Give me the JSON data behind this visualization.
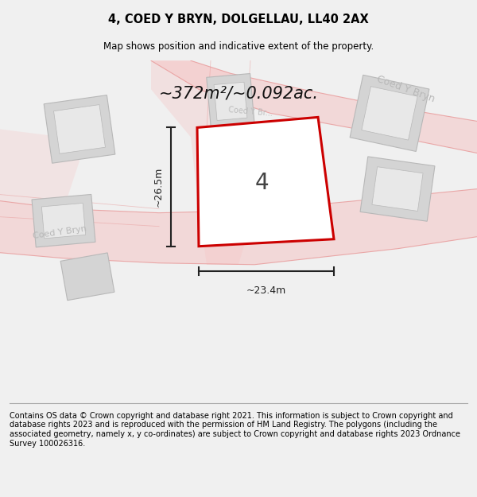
{
  "title": "4, COED Y BRYN, DOLGELLAU, LL40 2AX",
  "subtitle": "Map shows position and indicative extent of the property.",
  "area_label": "~372m²/~0.092ac.",
  "number_label": "4",
  "dim_height": "~26.5m",
  "dim_width": "~23.4m",
  "footer": "Contains OS data © Crown copyright and database right 2021. This information is subject to Crown copyright and database rights 2023 and is reproduced with the permission of HM Land Registry. The polygons (including the associated geometry, namely x, y co-ordinates) are subject to Crown copyright and database rights 2023 Ordnance Survey 100026316.",
  "bg_color": "#f0f0f0",
  "map_bg": "#ffffff",
  "road_fill": "#f5c8c8",
  "road_edge": "#e89898",
  "building_fill": "#d4d4d4",
  "building_edge": "#b8b8b8",
  "inner_fill": "#e8e8e8",
  "plot_fill": "#ffffff",
  "plot_edge": "#cc0000",
  "plot_edge_width": 2.2,
  "dim_color": "#222222",
  "road_label_color": "#b8b8b8",
  "title_fontsize": 10.5,
  "subtitle_fontsize": 8.5,
  "area_fontsize": 15,
  "number_fontsize": 20,
  "dim_fontsize": 9,
  "footer_fontsize": 7.0
}
